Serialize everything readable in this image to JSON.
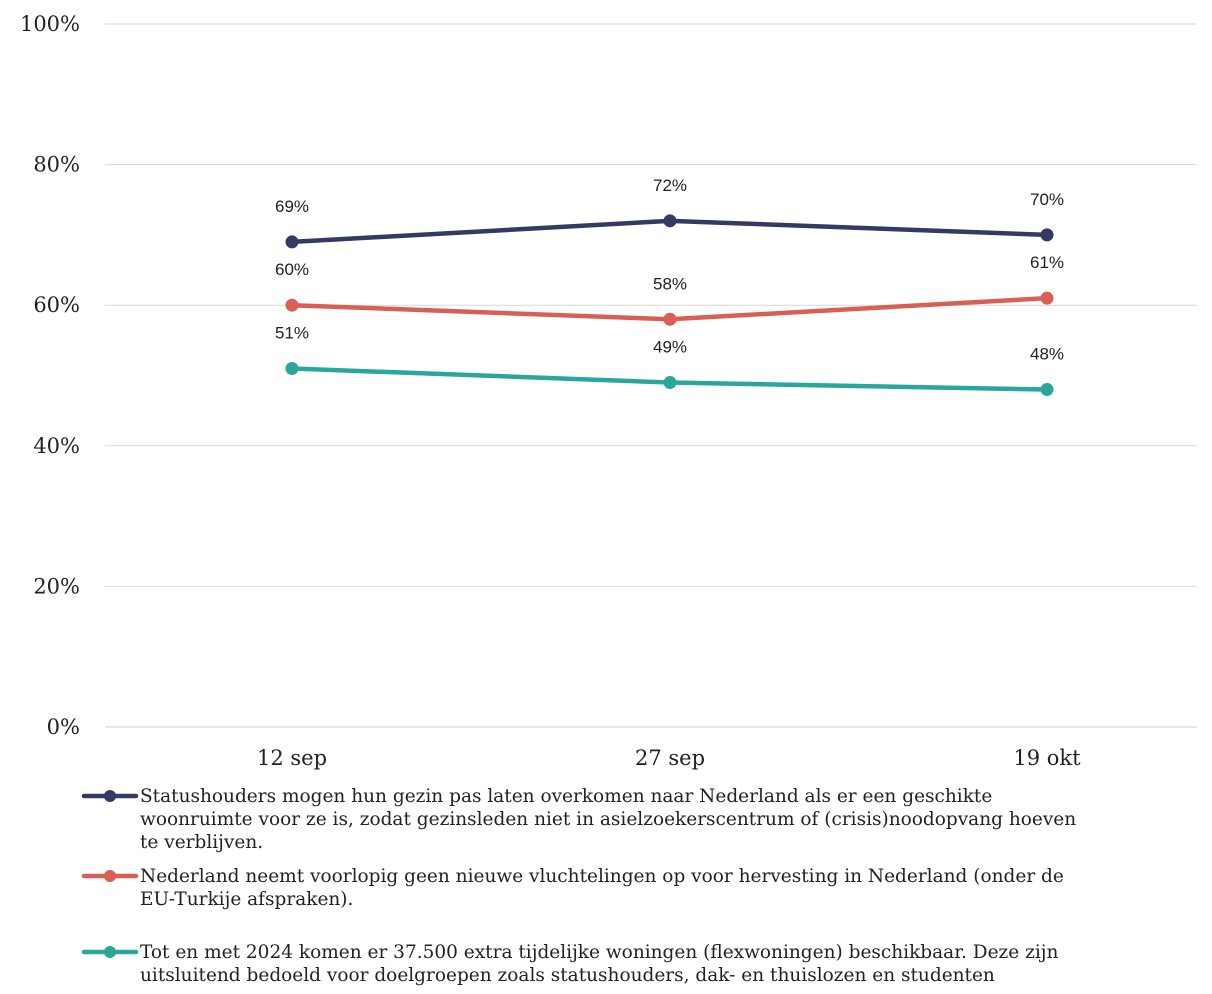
{
  "chart_data": {
    "type": "line",
    "categories": [
      "12 sep",
      "27 sep",
      "19 okt"
    ],
    "ylim": [
      0,
      100
    ],
    "yticks": [
      "0%",
      "20%",
      "40%",
      "60%",
      "80%",
      "100%"
    ],
    "ytick_values": [
      0,
      20,
      40,
      60,
      80,
      100
    ],
    "grid": true,
    "legend_position": "bottom",
    "series": [
      {
        "name": "Statushouders mogen hun gezin pas laten overkomen naar Nederland als er een geschikte woonruimte voor ze is, zodat gezinsleden niet in asielzoekerscentrum of (crisis)noodopvang hoeven te verblijven.",
        "name_lines": [
          "Statushouders mogen hun gezin pas laten overkomen naar Nederland als er een geschikte",
          "woonruimte voor ze is, zodat gezinsleden niet in asielzoekerscentrum of (crisis)noodopvang hoeven",
          "te verblijven."
        ],
        "values": [
          69,
          72,
          70
        ],
        "labels": [
          "69%",
          "72%",
          "70%"
        ],
        "color": "#343a63"
      },
      {
        "name": "Nederland neemt voorlopig geen nieuwe vluchtelingen op voor hervesting in Nederland (onder de EU-Turkije afspraken).",
        "name_lines": [
          "Nederland neemt voorlopig geen nieuwe vluchtelingen op voor hervesting in Nederland (onder de",
          "EU-Turkije afspraken)."
        ],
        "values": [
          60,
          58,
          61
        ],
        "labels": [
          "60%",
          "58%",
          "61%"
        ],
        "color": "#d95f55"
      },
      {
        "name": "Tot en met 2024 komen er 37.500 extra tijdelijke woningen (flexwoningen) beschikbaar. Deze zijn uitsluitend bedoeld voor doelgroepen zoals statushouders, dak- en thuislozen en studenten",
        "name_lines": [
          "Tot en met 2024 komen er 37.500 extra tijdelijke woningen (flexwoningen) beschikbaar. Deze zijn",
          "uitsluitend bedoeld voor doelgroepen zoals statushouders, dak- en thuislozen en studenten"
        ],
        "values": [
          51,
          49,
          48
        ],
        "labels": [
          "51%",
          "49%",
          "48%"
        ],
        "color": "#2aa79b"
      }
    ]
  }
}
